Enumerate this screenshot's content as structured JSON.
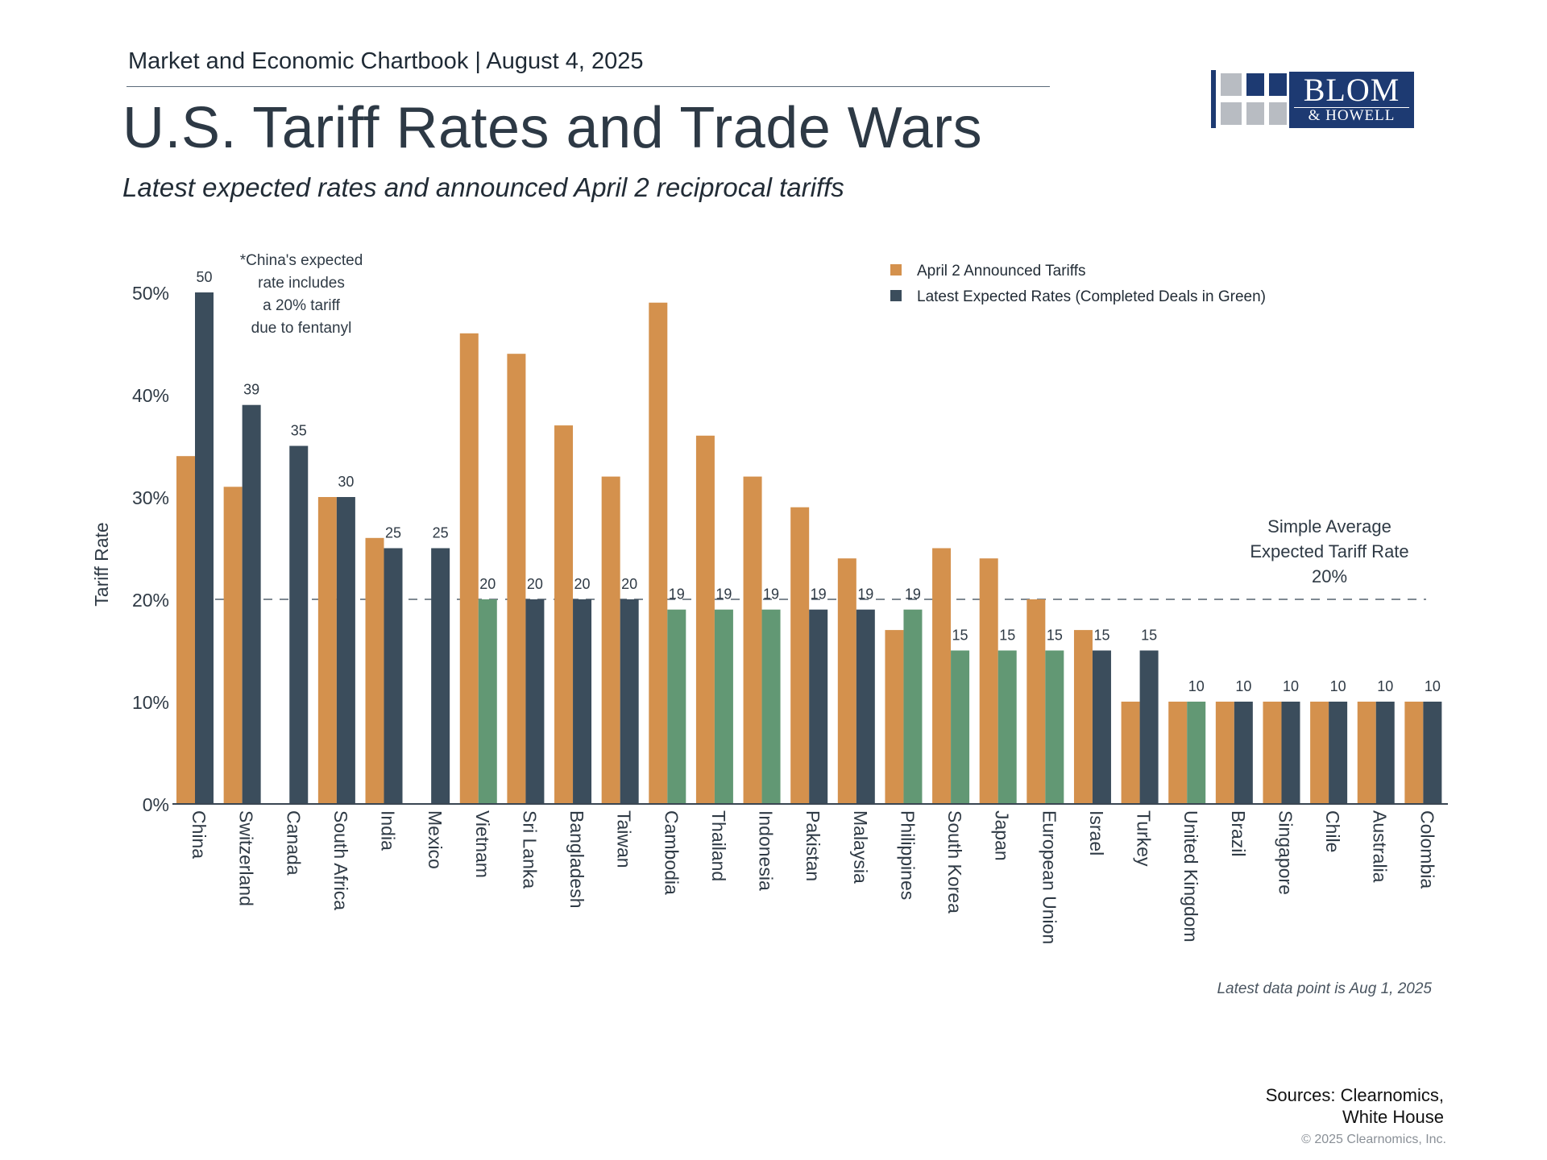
{
  "header": {
    "chartbook": "Market and Economic Chartbook | August 4, 2025",
    "title": "U.S. Tariff Rates and Trade Wars",
    "subtitle": "Latest expected rates and announced April 2 reciprocal tariffs"
  },
  "logo": {
    "line1": "BLOM",
    "line2": "& HOWELL"
  },
  "colors": {
    "announced": "#d4914d",
    "expected": "#3b4d5c",
    "completed_deal": "#629874",
    "axis": "#3a4652",
    "text": "#2f3a45"
  },
  "chart_data": {
    "type": "bar",
    "ylabel": "Tariff Rate",
    "ylim": [
      0,
      50
    ],
    "yticks": [
      "0%",
      "10%",
      "20%",
      "30%",
      "40%",
      "50%"
    ],
    "ytick_values": [
      0,
      10,
      20,
      30,
      40,
      50
    ],
    "categories": [
      "China",
      "Switzerland",
      "Canada",
      "South Africa",
      "India",
      "Mexico",
      "Vietnam",
      "Sri Lanka",
      "Bangladesh",
      "Taiwan",
      "Cambodia",
      "Thailand",
      "Indonesia",
      "Pakistan",
      "Malaysia",
      "Philippines",
      "South Korea",
      "Japan",
      "European Union",
      "Israel",
      "Turkey",
      "United Kingdom",
      "Brazil",
      "Singapore",
      "Chile",
      "Australia",
      "Colombia"
    ],
    "series": [
      {
        "name": "April 2 Announced Tariffs",
        "values": [
          34,
          31,
          null,
          30,
          26,
          null,
          46,
          44,
          37,
          32,
          49,
          36,
          32,
          29,
          24,
          17,
          25,
          24,
          20,
          17,
          10,
          10,
          10,
          10,
          10,
          10,
          10
        ]
      },
      {
        "name": "Latest Expected Rates (Completed Deals in Green)",
        "values": [
          50,
          39,
          35,
          30,
          25,
          25,
          20,
          20,
          20,
          20,
          19,
          19,
          19,
          19,
          19,
          19,
          15,
          15,
          15,
          15,
          15,
          10,
          10,
          10,
          10,
          10,
          10
        ],
        "data_labels": [
          "50",
          "39",
          "35",
          "30",
          "25",
          "25",
          "20",
          "20",
          "20",
          "20",
          "19",
          "19",
          "19",
          "19",
          "19",
          "19",
          "15",
          "15",
          "15",
          "15",
          "15",
          "10",
          "10",
          "10",
          "10",
          "10",
          "10"
        ],
        "completed_deal": [
          false,
          false,
          false,
          false,
          false,
          false,
          true,
          false,
          false,
          false,
          true,
          true,
          true,
          false,
          false,
          true,
          true,
          true,
          true,
          false,
          false,
          true,
          false,
          false,
          false,
          false,
          false
        ]
      }
    ],
    "reference_line": {
      "value": 20,
      "label_lines": [
        "Simple Average",
        "Expected Tariff Rate",
        "20%"
      ]
    },
    "annotation_lines": [
      "*China's expected",
      "rate includes",
      "a 20% tariff",
      "due to fentanyl"
    ],
    "footnote": "Latest data point is Aug 1, 2025",
    "legend_position": "top-right"
  },
  "footer": {
    "sources_line1": "Sources: Clearnomics,",
    "sources_line2": "White House",
    "copyright": "© 2025 Clearnomics, Inc."
  }
}
